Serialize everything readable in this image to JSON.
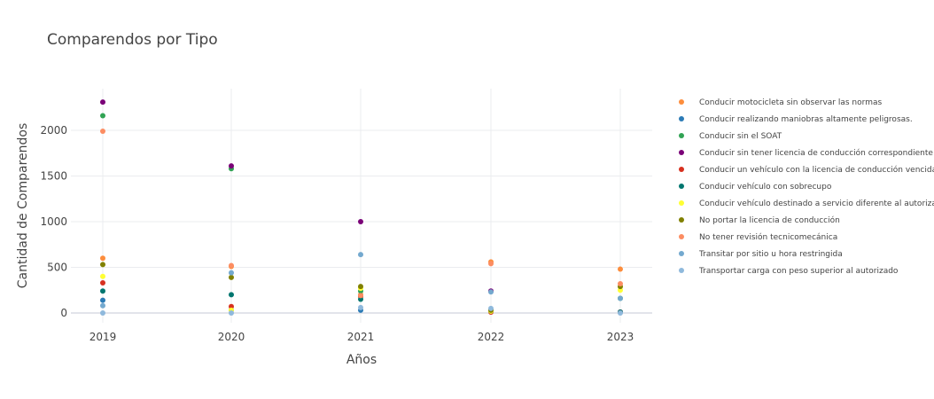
{
  "chart_data": {
    "type": "scatter",
    "title": "Comparendos por Tipo",
    "xlabel": "Años",
    "ylabel": "Cantidad de Comparendos",
    "x": [
      "2019",
      "2020",
      "2021",
      "2022",
      "2023"
    ],
    "ylim": [
      -100,
      2450
    ],
    "yticks": [
      0,
      500,
      1000,
      1500,
      2000
    ],
    "grid": true,
    "legend_position": "right",
    "series": [
      {
        "name": "Conducir motocicleta sin observar las normas",
        "color": "#fd8d3c",
        "values": [
          600,
          510,
          200,
          560,
          480
        ]
      },
      {
        "name": "Conducir realizando maniobras altamente peligrosas.",
        "color": "#2c7bb6",
        "values": [
          140,
          30,
          30,
          20,
          10
        ]
      },
      {
        "name": "Conducir sin el SOAT",
        "color": "#31a354",
        "values": [
          2160,
          1580,
          240,
          30,
          160
        ]
      },
      {
        "name": "Conducir sin tener licencia de conducción correspondiente",
        "color": "#7a0177",
        "values": [
          2310,
          1610,
          1000,
          240,
          10
        ]
      },
      {
        "name": "Conducir un vehículo con la licencia de conducción vencida.",
        "color": "#d7301f",
        "values": [
          330,
          70,
          180,
          10,
          10
        ]
      },
      {
        "name": "Conducir vehículo con sobrecupo",
        "color": "#00766f",
        "values": [
          240,
          200,
          150,
          20,
          10
        ]
      },
      {
        "name": "Conducir vehículo destinado a servicio diferente al autorizado",
        "color": "#ffff33",
        "values": [
          400,
          30,
          270,
          20,
          250
        ]
      },
      {
        "name": "No portar la licencia de conducción",
        "color": "#808000",
        "values": [
          530,
          390,
          290,
          30,
          290
        ]
      },
      {
        "name": "No tener revisión tecnicomecánica",
        "color": "#fc8d62",
        "values": [
          1990,
          520,
          190,
          540,
          320
        ]
      },
      {
        "name": "Transitar por sitio u hora restringida",
        "color": "#74a9cf",
        "values": [
          80,
          440,
          640,
          230,
          160
        ]
      },
      {
        "name": "Transportar carga con peso superior al autorizado",
        "color": "#8fb9dc",
        "values": [
          0,
          0,
          60,
          50,
          0
        ]
      }
    ]
  }
}
